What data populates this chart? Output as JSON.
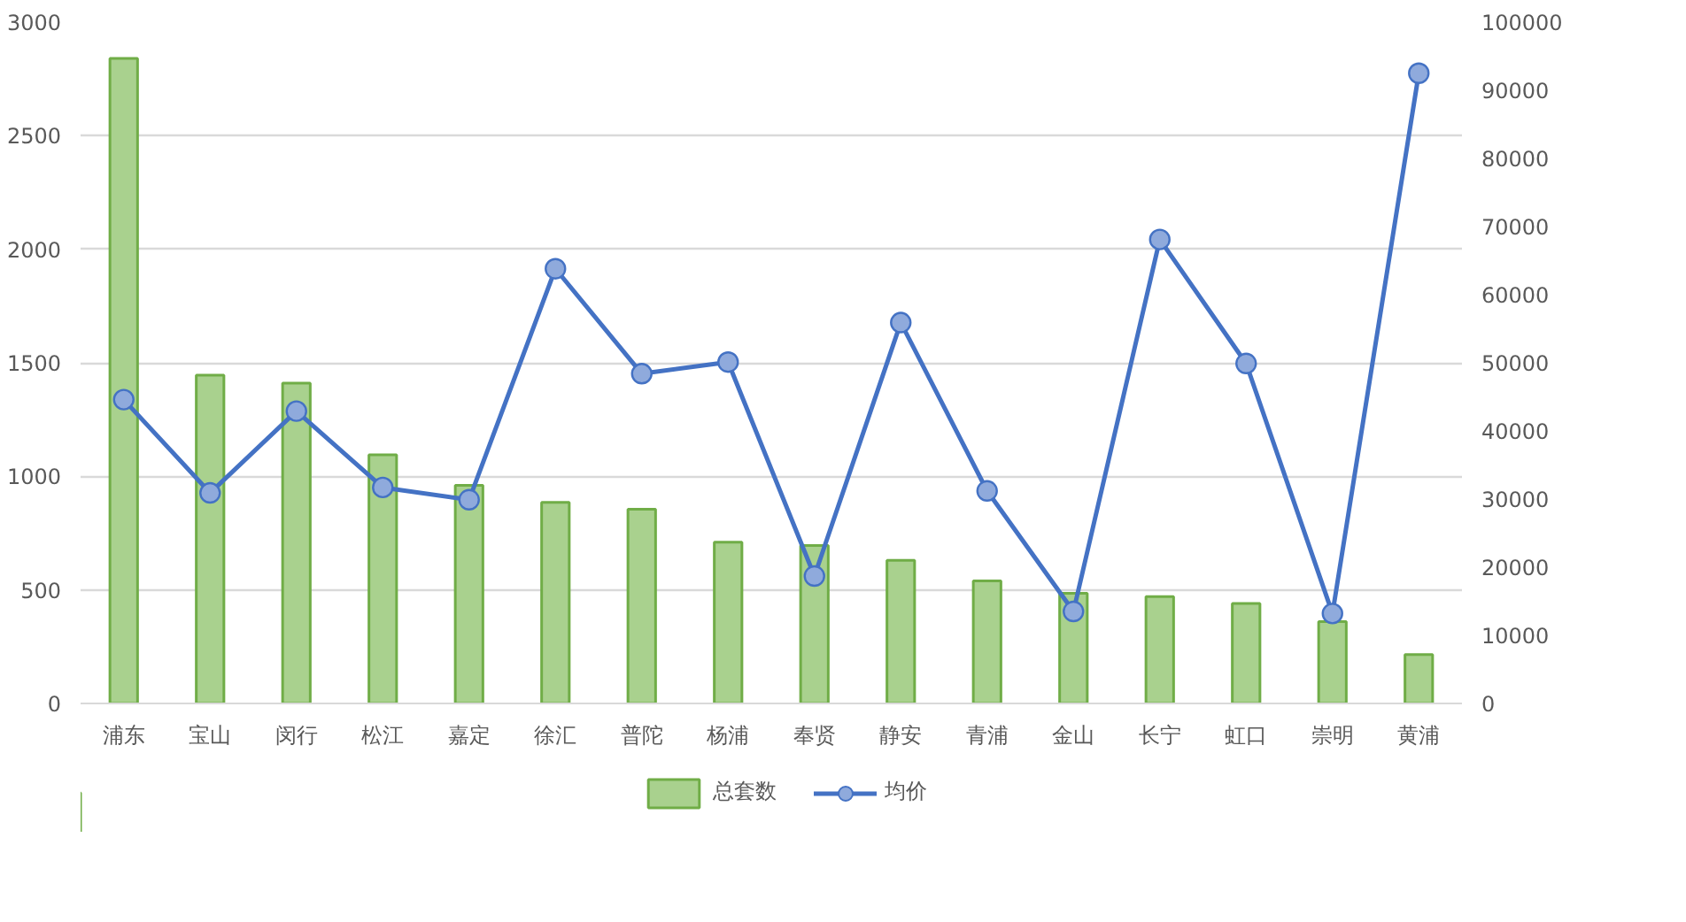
{
  "chart_data": {
    "type": "bar",
    "categories": [
      "浦东",
      "宝山",
      "闵行",
      "松江",
      "嘉定",
      "徐汇",
      "普陀",
      "杨浦",
      "奉贤",
      "静安",
      "青浦",
      "金山",
      "长宁",
      "虹口",
      "崇明",
      "黄浦"
    ],
    "series": [
      {
        "name": "总套数",
        "color": "#a9d18e",
        "values": [
          2840,
          1445,
          1410,
          1095,
          960,
          885,
          855,
          710,
          695,
          630,
          540,
          485,
          470,
          440,
          360,
          215
        ]
      },
      {
        "name": "均价",
        "type": "line",
        "axis": "y2",
        "color": "#4472c4",
        "values": [
          44600,
          30900,
          42900,
          31700,
          29900,
          63800,
          48400,
          50100,
          18700,
          55900,
          31200,
          13500,
          68100,
          49900,
          13200,
          92500
        ]
      }
    ],
    "ylim": [
      0,
      3000
    ],
    "yticks": [
      0,
      500,
      1000,
      1500,
      2000,
      2500,
      3000
    ],
    "y2lim": [
      0,
      100000
    ],
    "y2ticks": [
      0,
      10000,
      20000,
      30000,
      40000,
      50000,
      60000,
      70000,
      80000,
      90000,
      100000
    ],
    "grid": "y",
    "legend": "bottom",
    "marker": "circle",
    "line_style": "solid"
  }
}
